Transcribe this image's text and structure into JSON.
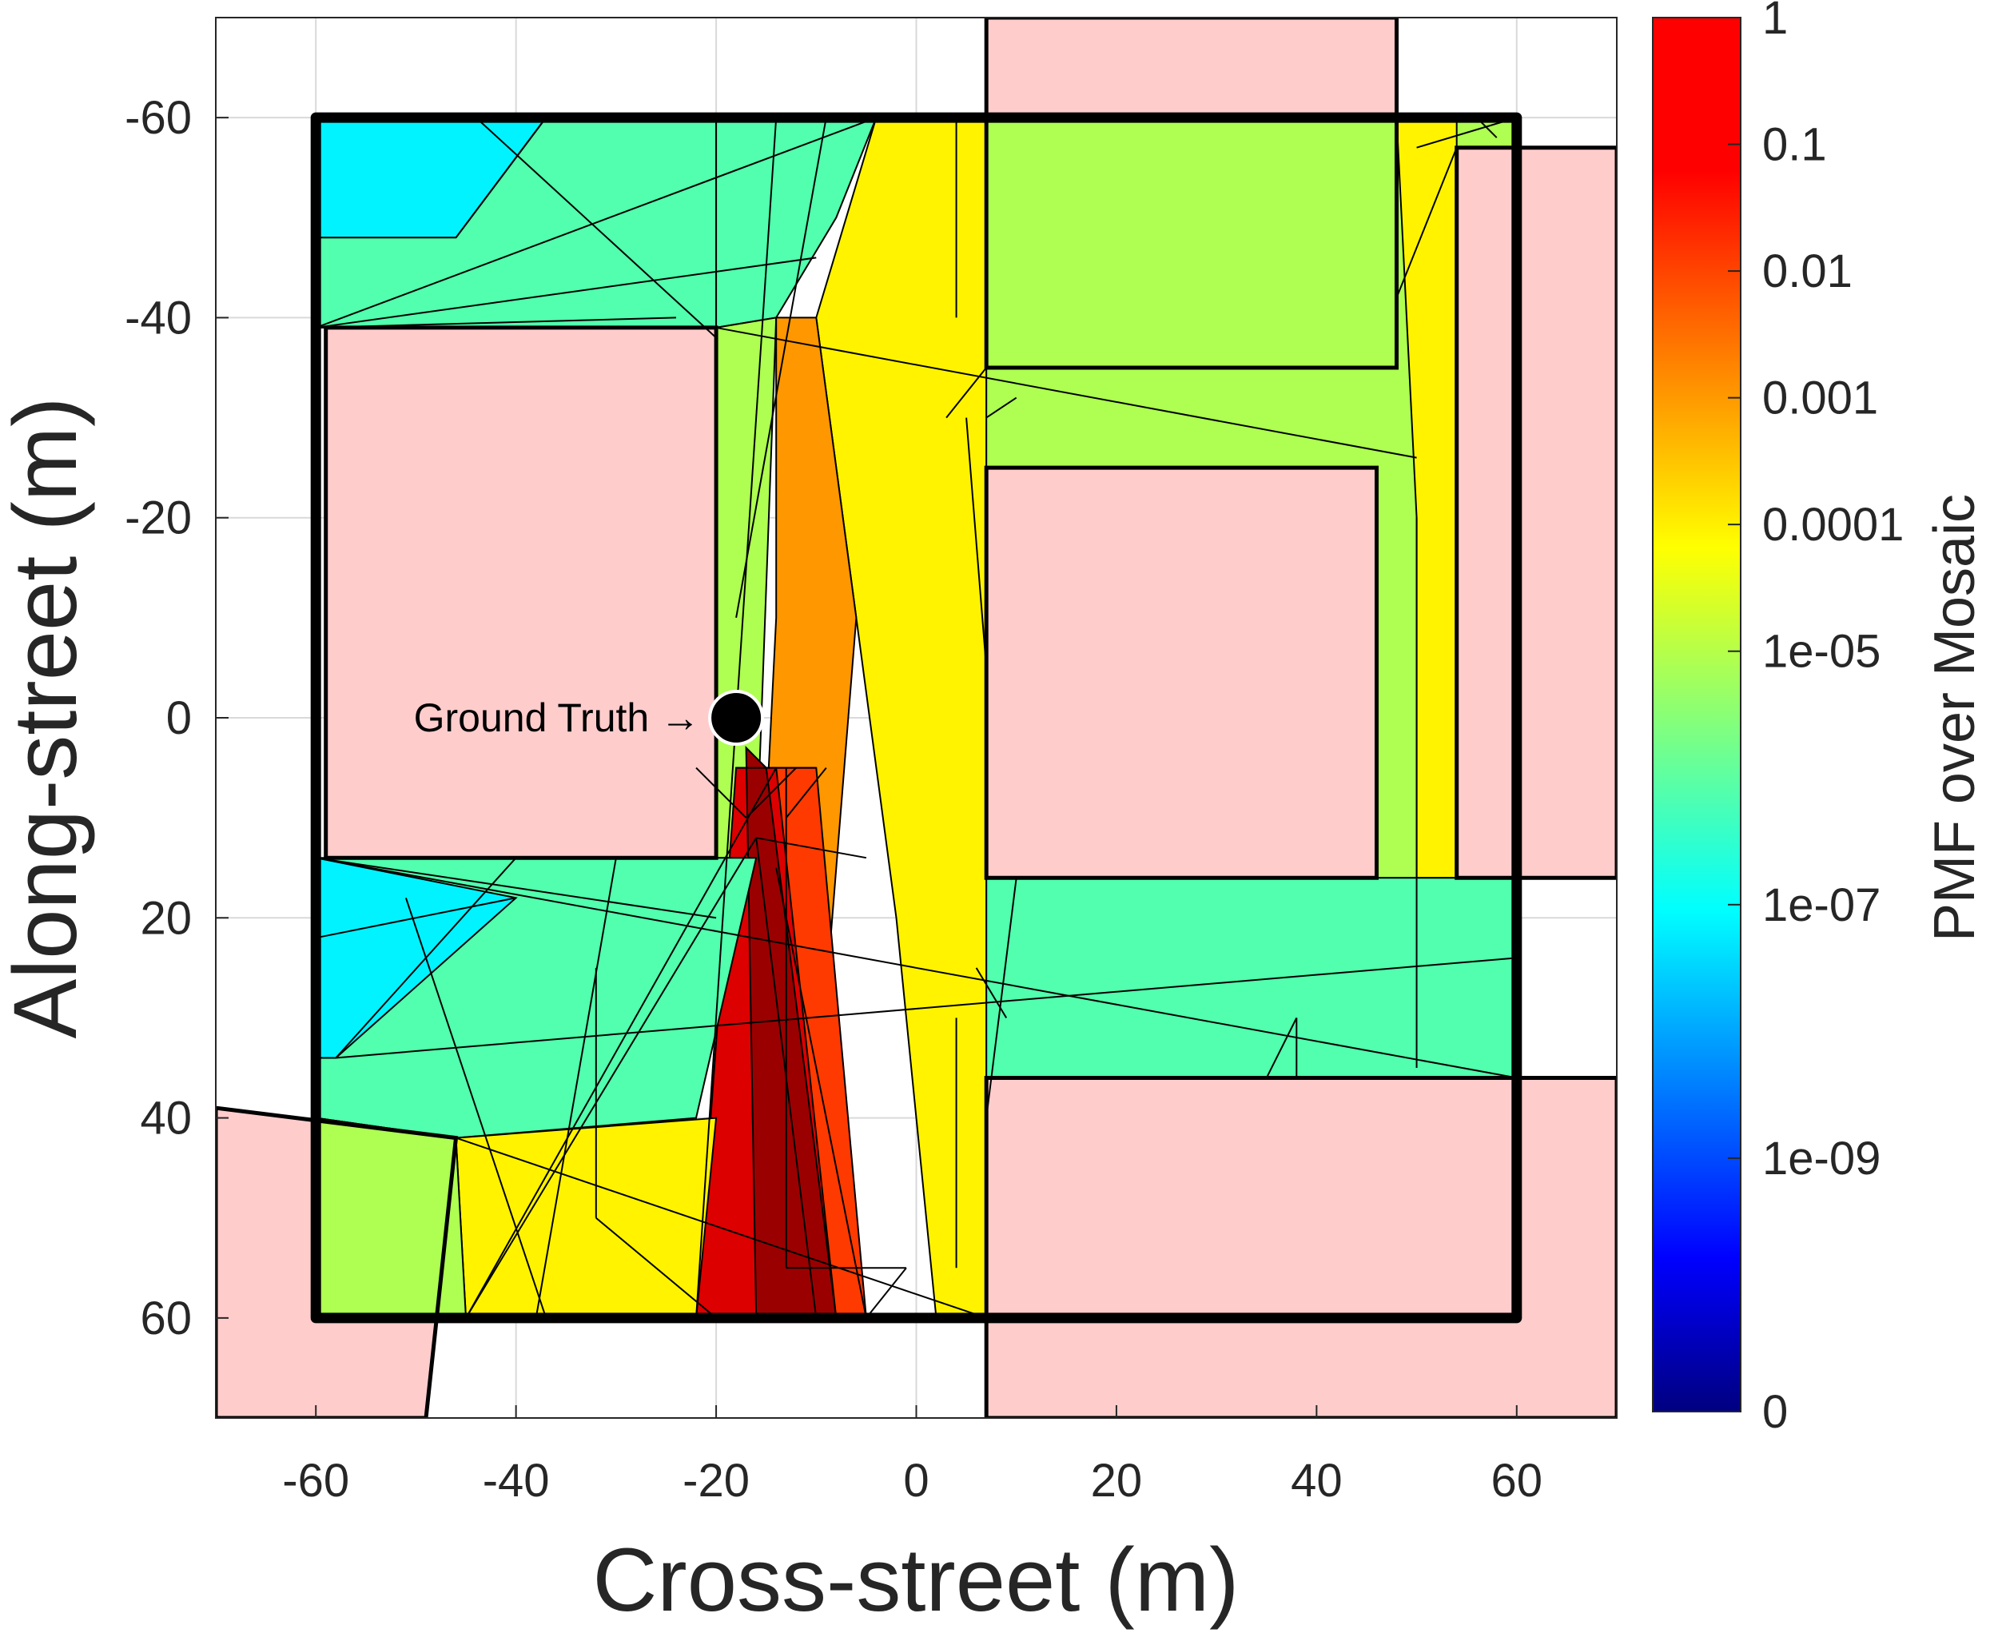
{
  "chart_data": {
    "type": "heatmap",
    "xlabel": "Cross-street (m)",
    "ylabel": "Along-street (m)",
    "xlim": [
      -70,
      70
    ],
    "ylim": [
      -70,
      70
    ],
    "y_reversed": true,
    "grid": true,
    "xticks": [
      -60,
      -40,
      -20,
      0,
      20,
      40,
      60
    ],
    "yticks": [
      -60,
      -40,
      -20,
      0,
      20,
      40,
      60
    ],
    "xtick_labels": [
      "-60",
      "-40",
      "-20",
      "0",
      "20",
      "40",
      "60"
    ],
    "ytick_labels": [
      "-60",
      "-40",
      "-20",
      "0",
      "20",
      "40",
      "60"
    ],
    "colorbar": {
      "label": "PMF over Mosaic",
      "scale": "log",
      "colormap": "jet",
      "ticks": [
        1,
        0.1,
        0.01,
        0.001,
        0.0001,
        1e-05,
        1e-07,
        1e-09,
        0
      ],
      "tick_labels": [
        "1",
        "0.1",
        "0.01",
        "0.001",
        "0.0001",
        "1e-05",
        "1e-07",
        "1e-09",
        "0"
      ]
    },
    "annotation": {
      "text": "Ground Truth →",
      "x": -18,
      "y": 0
    },
    "buildings": [
      [
        [
          -59,
          -39
        ],
        [
          -20,
          -39
        ],
        [
          -20,
          14
        ],
        [
          -59,
          14
        ]
      ],
      [
        [
          7,
          -70
        ],
        [
          48,
          -70
        ],
        [
          48,
          -35
        ],
        [
          7,
          -35
        ]
      ],
      [
        [
          7,
          -25
        ],
        [
          46,
          -25
        ],
        [
          46,
          16
        ],
        [
          7,
          16
        ]
      ],
      [
        [
          54,
          -57
        ],
        [
          70,
          -57
        ],
        [
          70,
          16
        ],
        [
          54,
          16
        ]
      ],
      [
        [
          7,
          36
        ],
        [
          70,
          36
        ],
        [
          70,
          70
        ],
        [
          7,
          70
        ]
      ],
      [
        [
          -70,
          39
        ],
        [
          -46,
          42
        ],
        [
          -49,
          70
        ],
        [
          -70,
          70
        ]
      ]
    ],
    "roads_outline": [
      [
        [
          -60,
          -60
        ],
        [
          60,
          -60
        ],
        [
          60,
          60
        ],
        [
          -60,
          60
        ]
      ]
    ],
    "pmf_regions": [
      {
        "pmf": 1e-07,
        "points": [
          [
            -60,
            -60
          ],
          [
            -37,
            -60
          ],
          [
            -46,
            -48
          ],
          [
            -60,
            -48
          ]
        ]
      },
      {
        "pmf": 1e-06,
        "points": [
          [
            -37,
            -60
          ],
          [
            -20,
            -60
          ],
          [
            -20,
            -39
          ],
          [
            -60,
            -39
          ],
          [
            -60,
            -48
          ],
          [
            -46,
            -48
          ]
        ]
      },
      {
        "pmf": 1e-06,
        "points": [
          [
            -20,
            -60
          ],
          [
            -4,
            -60
          ],
          [
            -8,
            -50
          ],
          [
            -14,
            -40
          ],
          [
            -20,
            -39
          ]
        ]
      },
      {
        "pmf": 1e-05,
        "points": [
          [
            -20,
            -39
          ],
          [
            -14,
            -40
          ],
          [
            -16,
            14
          ],
          [
            -20,
            14
          ]
        ]
      },
      {
        "pmf": 0.0001,
        "points": [
          [
            -4,
            -60
          ],
          [
            7,
            -60
          ],
          [
            7,
            60
          ],
          [
            2,
            60
          ],
          [
            -2,
            20
          ],
          [
            -6,
            -10
          ],
          [
            -10,
            -40
          ]
        ]
      },
      {
        "pmf": 0.001,
        "points": [
          [
            -10,
            -40
          ],
          [
            -6,
            -10
          ],
          [
            -10,
            40
          ],
          [
            -16,
            30
          ],
          [
            -14,
            -10
          ],
          [
            -14,
            -40
          ]
        ]
      },
      {
        "pmf": 0.01,
        "points": [
          [
            -18,
            5
          ],
          [
            -10,
            5
          ],
          [
            -5,
            60
          ],
          [
            -22,
            60
          ],
          [
            -20,
            40
          ]
        ]
      },
      {
        "pmf": 0.1,
        "points": [
          [
            -18,
            5
          ],
          [
            -14,
            5
          ],
          [
            -8,
            60
          ],
          [
            -22,
            60
          ]
        ]
      },
      {
        "pmf": 0.5,
        "points": [
          [
            -17,
            3
          ],
          [
            -15,
            5
          ],
          [
            -8,
            60
          ],
          [
            -16,
            60
          ]
        ]
      },
      {
        "pmf": 1e-05,
        "points": [
          [
            7,
            -60
          ],
          [
            48,
            -60
          ],
          [
            48,
            -35
          ],
          [
            7,
            -35
          ]
        ]
      },
      {
        "pmf": 1e-05,
        "points": [
          [
            48,
            -60
          ],
          [
            60,
            -60
          ],
          [
            60,
            -57
          ],
          [
            54,
            -57
          ],
          [
            54,
            16
          ],
          [
            46,
            16
          ],
          [
            46,
            -25
          ],
          [
            7,
            -25
          ],
          [
            7,
            -35
          ],
          [
            48,
            -35
          ]
        ]
      },
      {
        "pmf": 0.0001,
        "points": [
          [
            48,
            -60
          ],
          [
            54,
            -60
          ],
          [
            54,
            16
          ],
          [
            50,
            16
          ],
          [
            50,
            -20
          ]
        ]
      },
      {
        "pmf": 1e-06,
        "points": [
          [
            7,
            16
          ],
          [
            60,
            16
          ],
          [
            60,
            36
          ],
          [
            7,
            36
          ]
        ]
      },
      {
        "pmf": 1e-06,
        "points": [
          [
            -60,
            14
          ],
          [
            -16,
            14
          ],
          [
            -22,
            40
          ],
          [
            -46,
            42
          ],
          [
            -60,
            40
          ]
        ]
      },
      {
        "pmf": 1e-07,
        "points": [
          [
            -60,
            14
          ],
          [
            -40,
            18
          ],
          [
            -58,
            34
          ],
          [
            -60,
            34
          ]
        ]
      },
      {
        "pmf": 0.0001,
        "points": [
          [
            -46,
            42
          ],
          [
            -20,
            40
          ],
          [
            -22,
            60
          ],
          [
            -45,
            60
          ]
        ]
      },
      {
        "pmf": 1e-05,
        "points": [
          [
            -60,
            40
          ],
          [
            -46,
            42
          ],
          [
            -45,
            60
          ],
          [
            -60,
            60
          ]
        ]
      }
    ],
    "pmf_edges": [
      [
        [
          -60,
          -39
        ],
        [
          -24,
          -40
        ]
      ],
      [
        [
          -60,
          -39
        ],
        [
          -10,
          -46
        ]
      ],
      [
        [
          -60,
          -39
        ],
        [
          -4,
          -60
        ]
      ],
      [
        [
          -46,
          -48
        ],
        [
          -37,
          -60
        ]
      ],
      [
        [
          -44,
          -60
        ],
        [
          -20,
          -38
        ]
      ],
      [
        [
          -20,
          -39
        ],
        [
          50,
          -26
        ]
      ],
      [
        [
          -58,
          34
        ],
        [
          60,
          24
        ]
      ],
      [
        [
          -60,
          14
        ],
        [
          60,
          36
        ]
      ],
      [
        [
          -60,
          40
        ],
        [
          -46,
          42
        ]
      ],
      [
        [
          -46,
          42
        ],
        [
          7,
          60
        ]
      ],
      [
        [
          -45,
          60
        ],
        [
          -16,
          12
        ]
      ],
      [
        [
          -45,
          60
        ],
        [
          -14,
          5
        ]
      ],
      [
        [
          -38,
          60
        ],
        [
          -30,
          14
        ]
      ],
      [
        [
          -18,
          -10
        ],
        [
          -9,
          -60
        ]
      ],
      [
        [
          -22,
          60
        ],
        [
          -14,
          -60
        ]
      ],
      [
        [
          -10,
          60
        ],
        [
          -16,
          12
        ]
      ],
      [
        [
          -5,
          60
        ],
        [
          -14,
          15
        ]
      ],
      [
        [
          -32,
          25
        ],
        [
          -32,
          50
        ]
      ],
      [
        [
          -32,
          50
        ],
        [
          -20,
          60
        ]
      ],
      [
        [
          -13,
          5
        ],
        [
          -13,
          55
        ]
      ],
      [
        [
          -13,
          55
        ],
        [
          -1,
          55
        ]
      ],
      [
        [
          -1,
          55
        ],
        [
          -5,
          60
        ]
      ],
      [
        [
          -9,
          5
        ],
        [
          -13,
          10
        ]
      ],
      [
        [
          4,
          30
        ],
        [
          4,
          55
        ]
      ],
      [
        [
          -40,
          14
        ],
        [
          -58,
          34
        ]
      ],
      [
        [
          -40,
          18
        ],
        [
          -60,
          22
        ]
      ],
      [
        [
          -51,
          18
        ],
        [
          -37,
          60
        ]
      ],
      [
        [
          -60,
          14
        ],
        [
          -20,
          20
        ]
      ],
      [
        [
          -16,
          12
        ],
        [
          -5,
          14
        ]
      ],
      [
        [
          7,
          16
        ],
        [
          10,
          16
        ]
      ],
      [
        [
          10,
          16
        ],
        [
          7,
          40
        ]
      ],
      [
        [
          6,
          25
        ],
        [
          9,
          30
        ]
      ],
      [
        [
          5,
          -30
        ],
        [
          7,
          -5
        ]
      ],
      [
        [
          7,
          -35
        ],
        [
          3,
          -30
        ]
      ],
      [
        [
          4,
          -60
        ],
        [
          4,
          -40
        ]
      ],
      [
        [
          35,
          36
        ],
        [
          38,
          30
        ]
      ],
      [
        [
          38,
          30
        ],
        [
          38,
          36
        ]
      ],
      [
        [
          50,
          -57
        ],
        [
          60,
          -60
        ]
      ],
      [
        [
          48,
          -42
        ],
        [
          54,
          -57
        ]
      ],
      [
        [
          56,
          -60
        ],
        [
          58,
          -58
        ]
      ],
      [
        [
          50,
          -20
        ],
        [
          50,
          35
        ]
      ],
      [
        [
          -22,
          5
        ],
        [
          -17,
          10
        ]
      ],
      [
        [
          -17,
          10
        ],
        [
          -12,
          5
        ]
      ],
      [
        [
          -18,
          5
        ],
        [
          -10,
          5
        ]
      ],
      [
        [
          7,
          -30
        ],
        [
          10,
          -32
        ]
      ]
    ],
    "ground_truth": {
      "x": -18,
      "y": 0
    }
  }
}
